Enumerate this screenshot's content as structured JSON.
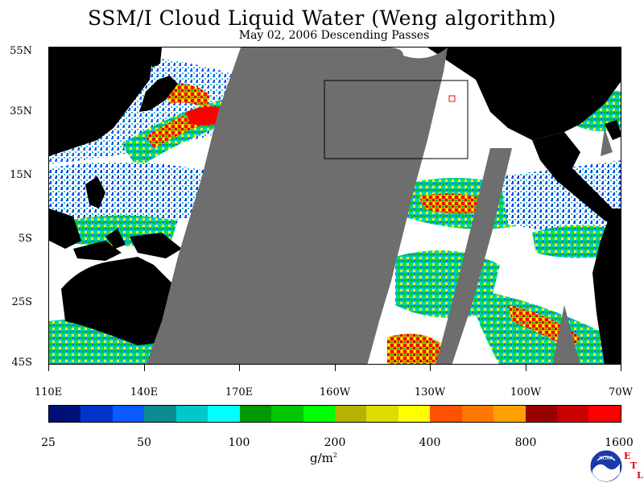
{
  "title": "SSM/I Cloud Liquid Water (Weng algorithm)",
  "subtitle": "May 02, 2006  Descending Passes",
  "lat_labels": [
    "55N",
    "35N",
    "15N",
    "5S",
    "25S",
    "45S"
  ],
  "lon_labels": [
    "110E",
    "140E",
    "170E",
    "160W",
    "130W",
    "100W",
    "70W"
  ],
  "colorbar": {
    "colors": [
      "#00107a",
      "#0033cc",
      "#0a5aff",
      "#0a8c90",
      "#00c8c8",
      "#00ffff",
      "#009a00",
      "#00c800",
      "#00ff00",
      "#b4b400",
      "#dcdc00",
      "#ffff00",
      "#ff5000",
      "#ff7800",
      "#ffa000",
      "#960000",
      "#c80000",
      "#ff0000"
    ],
    "labels": [
      "25",
      "50",
      "100",
      "200",
      "400",
      "800",
      "1600"
    ],
    "units_base": "g/m",
    "units_exp": "2"
  },
  "logo": {
    "text": "NOAA",
    "etl": [
      "E",
      "T",
      "L"
    ]
  },
  "colors": {
    "land": "#000000",
    "no_data_swath": "#6e6e6e",
    "ocean_clear": "#ffffff",
    "box_outline": "#000000",
    "red_marker": "#ff0000"
  }
}
